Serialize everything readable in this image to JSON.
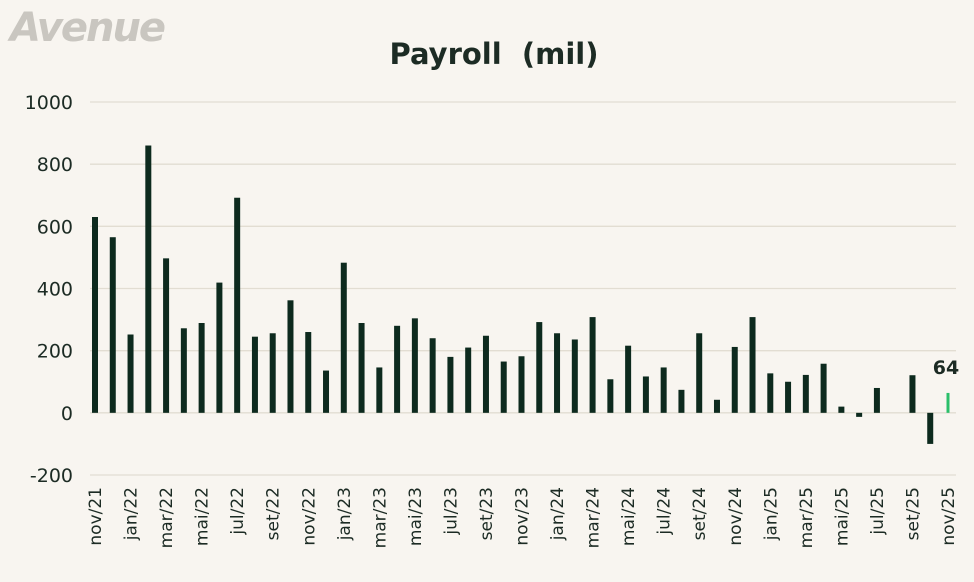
{
  "logo": "Avenue",
  "colors": {
    "background": "#f8f5f0",
    "bar": "#0d2a1e",
    "highlight": "#2bbf6a",
    "grid": "#e2ddd2",
    "text": "#1c2b24",
    "logo": "#c9c6c0"
  },
  "chart_data": {
    "type": "bar",
    "title": "Payroll  (mil)",
    "xlabel": "",
    "ylabel": "",
    "ylim": [
      -200,
      1000
    ],
    "yticks": [
      -200,
      0,
      200,
      400,
      600,
      800,
      1000
    ],
    "grid": true,
    "categories": [
      "nov/21",
      "dez/21",
      "jan/22",
      "fev/22",
      "mar/22",
      "abr/22",
      "mai/22",
      "jun/22",
      "jul/22",
      "ago/22",
      "set/22",
      "out/22",
      "nov/22",
      "dez/22",
      "jan/23",
      "fev/23",
      "mar/23",
      "abr/23",
      "mai/23",
      "jun/23",
      "jul/23",
      "ago/23",
      "set/23",
      "out/23",
      "nov/23",
      "dez/23",
      "jan/24",
      "fev/24",
      "mar/24",
      "abr/24",
      "mai/24",
      "jun/24",
      "jul/24",
      "ago/24",
      "set/24",
      "out/24",
      "nov/24",
      "dez/24",
      "jan/25",
      "fev/25",
      "mar/25",
      "abr/25",
      "mai/25",
      "jun/25",
      "jul/25",
      "ago/25",
      "set/25",
      "out/25",
      "nov/25"
    ],
    "xtick_labels": [
      "nov/21",
      "jan/22",
      "mar/22",
      "mai/22",
      "jul/22",
      "set/22",
      "nov/22",
      "jan/23",
      "mar/23",
      "mai/23",
      "jul/23",
      "set/23",
      "nov/23",
      "jan/24",
      "mar/24",
      "mai/24",
      "jul/24",
      "set/24",
      "nov/24",
      "jan/25",
      "mar/25",
      "mai/25",
      "jul/25",
      "set/25",
      "nov/25"
    ],
    "values": [
      630,
      565,
      252,
      860,
      497,
      272,
      289,
      419,
      692,
      245,
      256,
      362,
      260,
      136,
      483,
      289,
      146,
      280,
      304,
      240,
      180,
      210,
      248,
      165,
      182,
      292,
      256,
      236,
      308,
      108,
      216,
      117,
      146,
      74,
      256,
      42,
      212,
      308,
      127,
      100,
      122,
      158,
      20,
      -13,
      80,
      null,
      121,
      -100,
      64
    ],
    "highlight_index": 48,
    "annotation": "64"
  }
}
